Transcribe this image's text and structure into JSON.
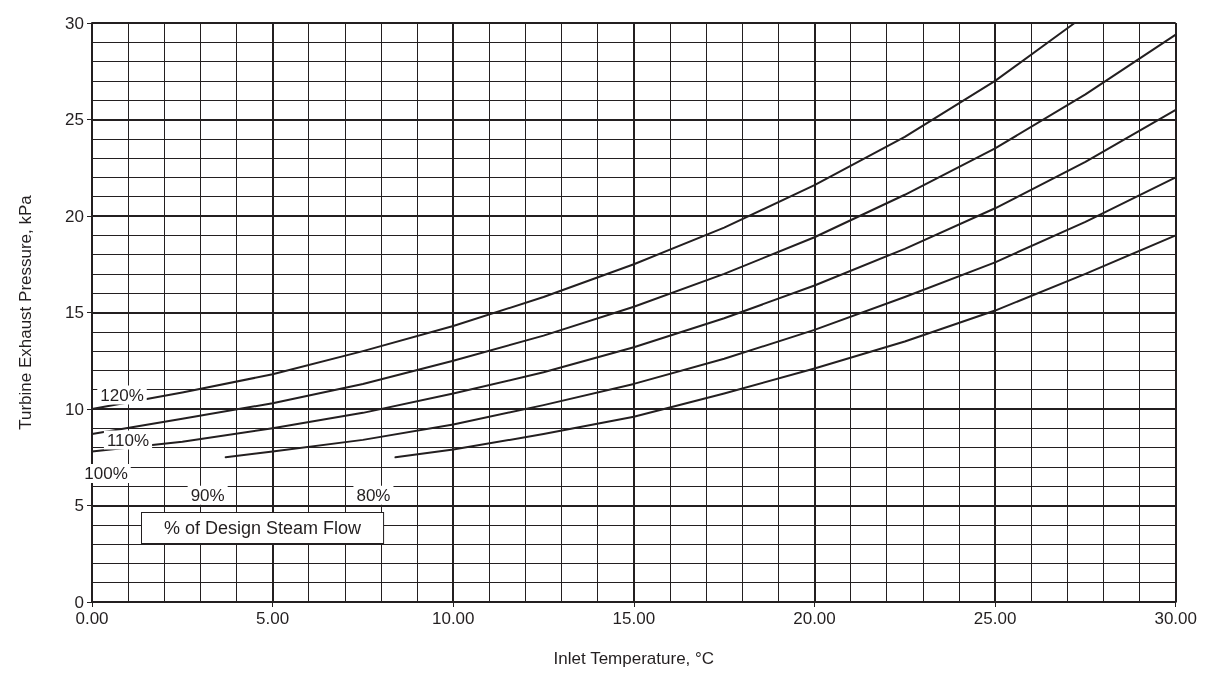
{
  "chart_data": {
    "type": "line",
    "xlabel": "Inlet Temperature, °C",
    "ylabel": "Turbine Exhaust Pressure, kPa",
    "legend_title": "% of Design Steam Flow",
    "xlim": [
      0,
      30
    ],
    "ylim": [
      0,
      30
    ],
    "xticks": [
      {
        "value": 0,
        "label": "0.00"
      },
      {
        "value": 5,
        "label": "5.00"
      },
      {
        "value": 10,
        "label": "10.00"
      },
      {
        "value": 15,
        "label": "15.00"
      },
      {
        "value": 20,
        "label": "20.00"
      },
      {
        "value": 25,
        "label": "25.00"
      },
      {
        "value": 30,
        "label": "30.00"
      }
    ],
    "yticks": [
      0,
      5,
      10,
      15,
      20,
      25,
      30
    ],
    "grid": true,
    "marker": "none",
    "line_style": "solid",
    "series": [
      {
        "name": "120%",
        "color": "#231f20",
        "x": [
          0,
          2.5,
          5,
          7.5,
          10,
          12.5,
          15,
          17.5,
          20,
          22.5,
          25,
          27.2
        ],
        "values": [
          10,
          10.85,
          11.8,
          13,
          14.3,
          15.8,
          17.5,
          19.4,
          21.6,
          24.1,
          27,
          30
        ]
      },
      {
        "name": "110%",
        "color": "#231f20",
        "x": [
          0,
          2.5,
          5,
          7.5,
          10,
          12.5,
          15,
          17.5,
          20,
          22.5,
          25,
          27.5,
          30
        ],
        "values": [
          8.7,
          9.5,
          10.3,
          11.3,
          12.5,
          13.8,
          15.3,
          17,
          18.9,
          21.1,
          23.5,
          26.3,
          29.4
        ]
      },
      {
        "name": "100%",
        "color": "#231f20",
        "x": [
          0,
          2.5,
          5,
          7.5,
          10,
          12.5,
          15,
          17.5,
          20,
          22.5,
          25,
          27.5,
          30
        ],
        "values": [
          7.8,
          8.3,
          9,
          9.8,
          10.8,
          11.9,
          13.2,
          14.7,
          16.4,
          18.3,
          20.4,
          22.8,
          25.5
        ]
      },
      {
        "name": "90%",
        "color": "#231f20",
        "x": [
          3.7,
          5,
          7.5,
          10,
          12.5,
          15,
          17.5,
          20,
          22.5,
          25,
          27.5,
          30
        ],
        "values": [
          7.5,
          7.8,
          8.4,
          9.2,
          10.2,
          11.3,
          12.6,
          14.1,
          15.8,
          17.6,
          19.7,
          22
        ]
      },
      {
        "name": "80%",
        "color": "#231f20",
        "x": [
          8.4,
          10,
          12.5,
          15,
          17.5,
          20,
          22.5,
          25,
          27.5,
          30
        ],
        "values": [
          7.5,
          7.9,
          8.7,
          9.6,
          10.8,
          12.1,
          13.5,
          15.1,
          17,
          19
        ]
      }
    ]
  }
}
